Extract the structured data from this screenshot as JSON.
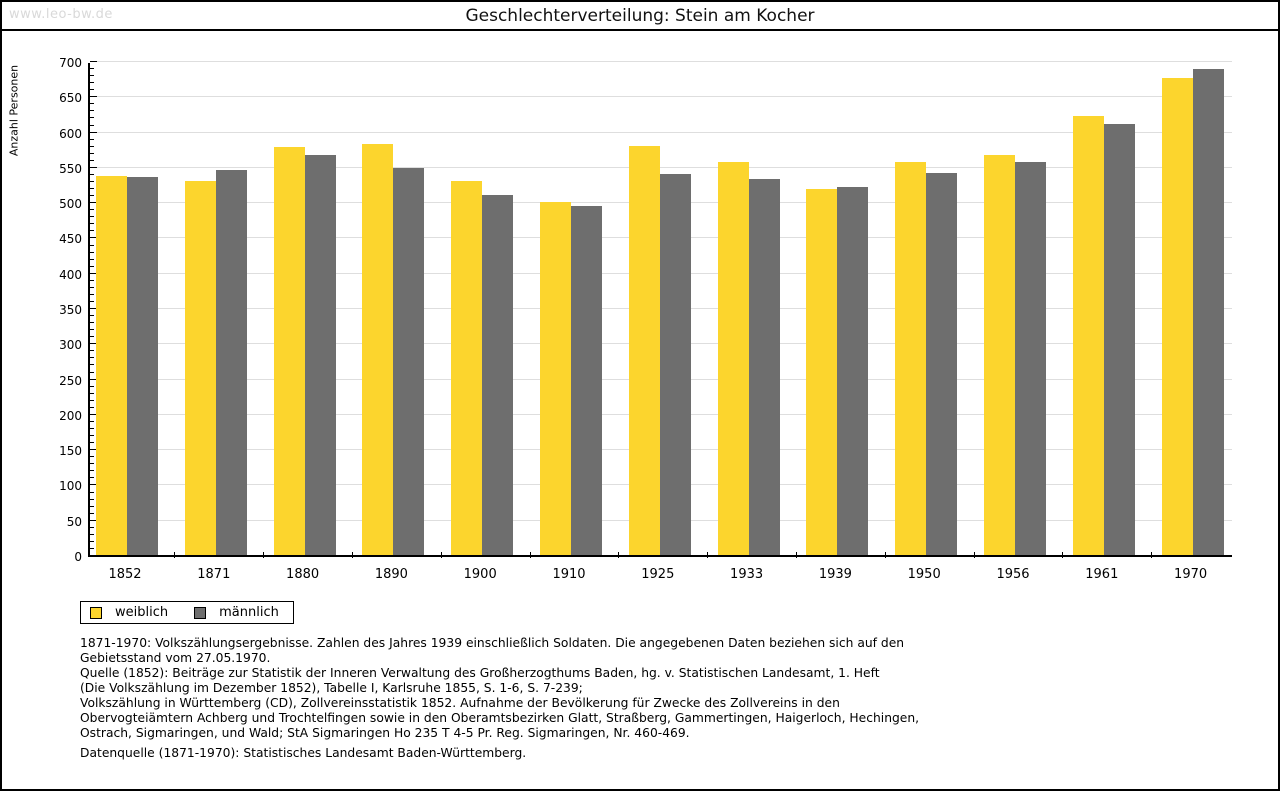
{
  "watermark": "www.leo-bw.de",
  "title": "Geschlechterverteilung: Stein am Kocher",
  "chart_data": {
    "type": "bar",
    "title": "Geschlechterverteilung: Stein am Kocher",
    "xlabel": "",
    "ylabel": "Anzahl Personen",
    "ylim": [
      0,
      700
    ],
    "ytick_step": 50,
    "ytick_minor_step": 10,
    "grid": true,
    "legend_position": "bottom-left",
    "categories": [
      "1852",
      "1871",
      "1880",
      "1890",
      "1900",
      "1910",
      "1925",
      "1933",
      "1939",
      "1950",
      "1956",
      "1961",
      "1970"
    ],
    "series": [
      {
        "name": "weiblich",
        "color": "#FCD52D",
        "values": [
          537,
          530,
          578,
          583,
          530,
          500,
          580,
          557,
          519,
          557,
          567,
          622,
          676
        ]
      },
      {
        "name": "männlich",
        "color": "#6E6E6E",
        "values": [
          535,
          546,
          567,
          548,
          510,
          495,
          540,
          533,
          521,
          541,
          557,
          611,
          688
        ]
      }
    ]
  },
  "legend": {
    "items": [
      {
        "label": "weiblich",
        "color": "#FCD52D"
      },
      {
        "label": "männlich",
        "color": "#6E6E6E"
      }
    ]
  },
  "notes": {
    "lines": [
      "1871-1970: Volkszählungsergebnisse. Zahlen des Jahres 1939 einschließlich Soldaten. Die angegebenen Daten beziehen sich auf den",
      "Gebietsstand vom 27.05.1970.",
      "Quelle (1852): Beiträge zur Statistik der Inneren Verwaltung des Großherzogthums Baden, hg. v. Statistischen Landesamt, 1. Heft",
      "(Die Volkszählung im Dezember 1852), Tabelle I, Karlsruhe 1855, S. 1-6, S. 7-239;",
      "Volkszählung in Württemberg (CD), Zollvereinsstatistik 1852. Aufnahme der Bevölkerung für Zwecke des Zollvereins in den",
      "Obervogteiämtern Achberg und Trochtelfingen sowie in den Oberamtsbezirken Glatt, Straßberg, Gammertingen, Haigerloch, Hechingen,",
      "Ostrach, Sigmaringen, und Wald; StA Sigmaringen Ho 235 T 4-5 Pr. Reg. Sigmaringen, Nr. 460-469."
    ],
    "datasource": "Datenquelle (1871-1970): Statistisches Landesamt Baden-Württemberg."
  },
  "colors": {
    "bar_female": "#FCD52D",
    "bar_male": "#6E6E6E",
    "gridline": "#DEDEDE",
    "watermark": "#D9D9D9",
    "axis": "#000000"
  }
}
